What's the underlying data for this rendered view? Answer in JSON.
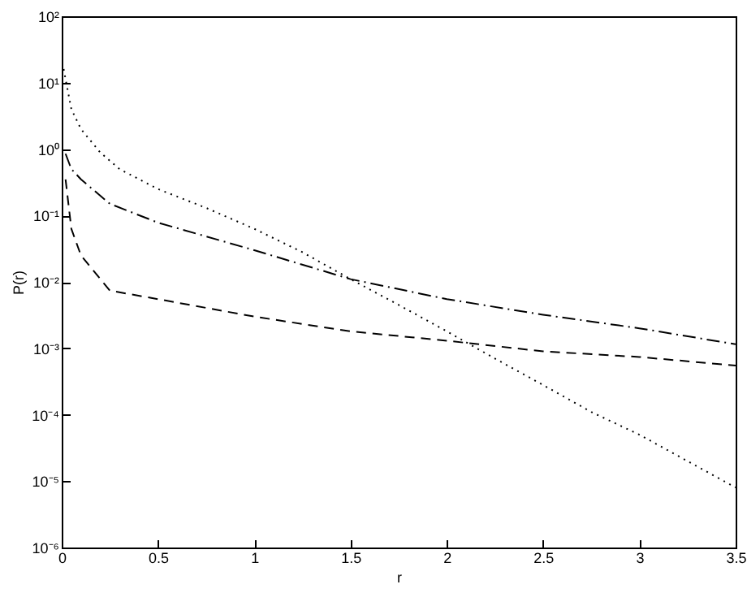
{
  "chart_data": {
    "type": "line",
    "xlabel": "r",
    "ylabel": "P(r)",
    "log": "y",
    "grid": false,
    "marker": "none",
    "xlim": [
      0,
      3.5
    ],
    "xticks": [
      0,
      0.5,
      1,
      1.5,
      2,
      2.5,
      3,
      3.5
    ],
    "ylim": [
      1e-06,
      100
    ],
    "yticks": [
      {
        "value": 1e-06,
        "label": "10⁻⁶"
      },
      {
        "value": 1e-05,
        "label": "10⁻⁵"
      },
      {
        "value": 0.0001,
        "label": "10⁻⁴"
      },
      {
        "value": 0.001,
        "label": "10⁻³"
      },
      {
        "value": 0.01,
        "label": "10⁻²"
      },
      {
        "value": 0.1,
        "label": "10⁻¹"
      },
      {
        "value": 1,
        "label": "10⁰"
      },
      {
        "value": 10,
        "label": "10¹"
      },
      {
        "value": 100,
        "label": "10²"
      }
    ],
    "series": [
      {
        "color": "#000000",
        "line_style": "dotted",
        "x": [
          0.01,
          0.05,
          0.1,
          0.2,
          0.3,
          0.5,
          0.75,
          1,
          1.25,
          1.5,
          1.75,
          2,
          2.25,
          2.5,
          2.75,
          3,
          3.25,
          3.5
        ],
        "values": [
          16,
          4,
          2,
          0.89,
          0.5,
          0.25,
          0.13,
          0.063,
          0.028,
          0.011,
          0.0045,
          0.0018,
          0.0007,
          0.00028,
          0.00011,
          5e-05,
          2e-05,
          8e-06
        ]
      },
      {
        "color": "#000000",
        "line_style": "dashdot",
        "x": [
          0.02,
          0.05,
          0.1,
          0.25,
          0.5,
          1,
          1.5,
          2,
          2.5,
          3,
          3.5
        ],
        "values": [
          0.85,
          0.5,
          0.35,
          0.15,
          0.078,
          0.03,
          0.011,
          0.0055,
          0.0032,
          0.002,
          0.00115
        ]
      },
      {
        "color": "#000000",
        "line_style": "dashed",
        "x": [
          0.02,
          0.05,
          0.1,
          0.25,
          0.5,
          1,
          1.5,
          2,
          2.5,
          3,
          3.5
        ],
        "values": [
          0.35,
          0.063,
          0.025,
          0.0074,
          0.0055,
          0.003,
          0.0018,
          0.0013,
          0.0009,
          0.00074,
          0.00055
        ]
      }
    ]
  }
}
